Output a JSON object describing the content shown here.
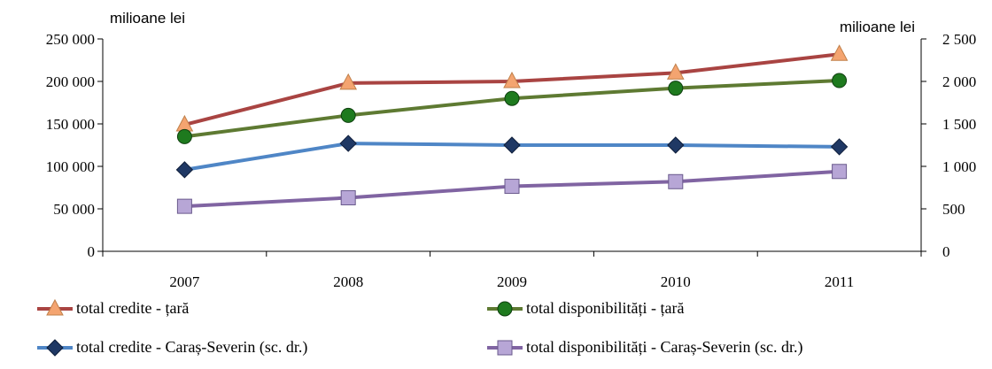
{
  "chart_data": {
    "type": "line",
    "categories": [
      "2007",
      "2008",
      "2009",
      "2010",
      "2011"
    ],
    "left_axis": {
      "unit_label": "milioane lei",
      "ylim": [
        0,
        250000
      ],
      "ticks": [
        0,
        50000,
        100000,
        150000,
        200000,
        250000
      ],
      "tick_labels": [
        "0",
        "50 000",
        "100 000",
        "150 000",
        "200 000",
        "250 000"
      ]
    },
    "right_axis": {
      "unit_label": "milioane lei",
      "ylim": [
        0,
        2500
      ],
      "ticks": [
        0,
        500,
        1000,
        1500,
        2000,
        2500
      ],
      "tick_labels": [
        "0",
        "500",
        "1 000",
        "1 500",
        "2 000",
        "2 500"
      ]
    },
    "grid": false,
    "legend_position": "bottom",
    "series": [
      {
        "name": "total credite - țară",
        "axis": "left",
        "color": "#A94442",
        "marker": "triangle",
        "marker_color": "#F4A470",
        "values": [
          149000,
          198000,
          200000,
          210000,
          232000
        ]
      },
      {
        "name": "total disponibilități - țară",
        "axis": "left",
        "color": "#5E7A32",
        "marker": "circle",
        "marker_color": "#1E7A1E",
        "values": [
          135000,
          160000,
          180000,
          192000,
          201000
        ]
      },
      {
        "name": "total credite - Caraș-Severin (sc. dr.)",
        "axis": "right",
        "color": "#4F86C6",
        "marker": "diamond",
        "marker_color": "#1F3864",
        "values": [
          960,
          1270,
          1250,
          1250,
          1230
        ]
      },
      {
        "name": "total disponibilități - Caraș-Severin (sc. dr.)",
        "axis": "right",
        "color": "#8064A2",
        "marker": "square",
        "marker_color": "#B7A6D6",
        "values": [
          530,
          630,
          765,
          820,
          940
        ]
      }
    ]
  }
}
